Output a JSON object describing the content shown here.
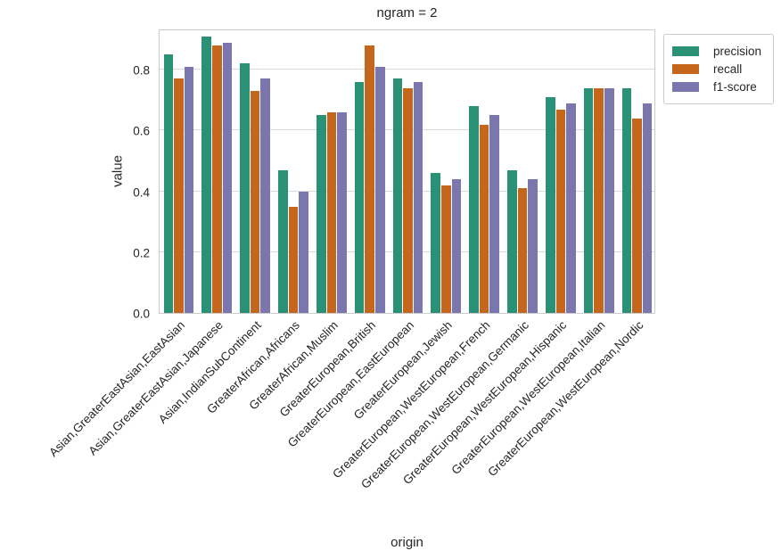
{
  "figure_title": "ngram = 2",
  "chart_data": {
    "type": "bar",
    "title": "ngram = 2",
    "xlabel": "origin",
    "ylabel": "value",
    "ylim": [
      0.0,
      0.936
    ],
    "yticks": [
      0.0,
      0.2,
      0.4,
      0.6,
      0.8
    ],
    "grid": "horizontal",
    "legend_position": "upper right, outside plot",
    "categories": [
      "Asian,GreaterEastAsian,EastAsian",
      "Asian,GreaterEastAsian,Japanese",
      "Asian,IndianSubContinent",
      "GreaterAfrican,Africans",
      "GreaterAfrican,Muslim",
      "GreaterEuropean,British",
      "GreaterEuropean,EastEuropean",
      "GreaterEuropean,Jewish",
      "GreaterEuropean,WestEuropean,French",
      "GreaterEuropean,WestEuropean,Germanic",
      "GreaterEuropean,WestEuropean,Hispanic",
      "GreaterEuropean,WestEuropean,Italian",
      "GreaterEuropean,WestEuropean,Nordic"
    ],
    "series": [
      {
        "name": "precision",
        "color": "#2a9076",
        "values": [
          0.85,
          0.91,
          0.82,
          0.47,
          0.65,
          0.76,
          0.77,
          0.46,
          0.68,
          0.47,
          0.71,
          0.74,
          0.74
        ]
      },
      {
        "name": "recall",
        "color": "#c4671d",
        "values": [
          0.77,
          0.88,
          0.73,
          0.35,
          0.66,
          0.88,
          0.74,
          0.42,
          0.62,
          0.41,
          0.67,
          0.74,
          0.64
        ]
      },
      {
        "name": "f1-score",
        "color": "#7b77ae",
        "values": [
          0.81,
          0.89,
          0.77,
          0.4,
          0.66,
          0.81,
          0.76,
          0.44,
          0.65,
          0.44,
          0.69,
          0.74,
          0.69
        ]
      }
    ]
  },
  "colors": {
    "grid": "#d9d9d9",
    "spine": "#cccccc",
    "text": "#262626"
  }
}
